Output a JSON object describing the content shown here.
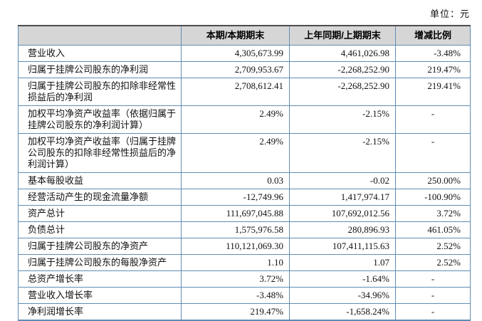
{
  "page": {
    "unit_label": "单位：元"
  },
  "colors": {
    "border_blue": "#5f8db4",
    "top_rule_dark": "#4c4c4c",
    "header_bg": "#d6d6d6",
    "text": "#111111"
  },
  "table": {
    "columns": [
      "",
      "本期/本期期末",
      "上年同期/上期期末",
      "增减比例"
    ],
    "rows": [
      {
        "label": "营业收入",
        "current": "4,305,673.99",
        "prior": "4,461,026.98",
        "change": "-3.48%"
      },
      {
        "label": "归属于挂牌公司股东的净利润",
        "current": "2,709,953.67",
        "prior": "-2,268,252.90",
        "change": "219.47%"
      },
      {
        "label": "归属于挂牌公司股东的扣除非经常性损益后的净利润",
        "current": "2,708,612.41",
        "prior": "-2,268,252.90",
        "change": "219.41%"
      },
      {
        "label": "加权平均净资产收益率（依据归属于挂牌公司股东的净利润计算）",
        "current": "2.49%",
        "prior": "-2.15%",
        "change": "-"
      },
      {
        "label": "加权平均净资产收益率（归属于挂牌公司股东的扣除非经常性损益后的净利润计算）",
        "current": "2.49%",
        "prior": "-2.15%",
        "change": "-"
      },
      {
        "label": "基本每股收益",
        "current": "0.03",
        "prior": "-0.02",
        "change": "250.00%"
      },
      {
        "label": "经营活动产生的现金流量净额",
        "current": "-12,749.96",
        "prior": "1,417,974.17",
        "change": "-100.90%"
      },
      {
        "label": "资产总计",
        "current": "111,697,045.88",
        "prior": "107,692,012.56",
        "change": "3.72%"
      },
      {
        "label": "负债总计",
        "current": "1,575,976.58",
        "prior": "280,896.93",
        "change": "461.05%"
      },
      {
        "label": "归属于挂牌公司股东的净资产",
        "current": "110,121,069.30",
        "prior": "107,411,115.63",
        "change": "2.52%"
      },
      {
        "label": "归属于挂牌公司股东的每股净资产",
        "current": "1.10",
        "prior": "1.07",
        "change": "2.52%"
      },
      {
        "label": "总资产增长率",
        "current": "3.72%",
        "prior": "-1.64%",
        "change": "-"
      },
      {
        "label": "营业收入增长率",
        "current": "-3.48%",
        "prior": "-34.96%",
        "change": "-"
      },
      {
        "label": "净利润增长率",
        "current": "219.47%",
        "prior": "-1,658.24%",
        "change": "-"
      }
    ]
  }
}
